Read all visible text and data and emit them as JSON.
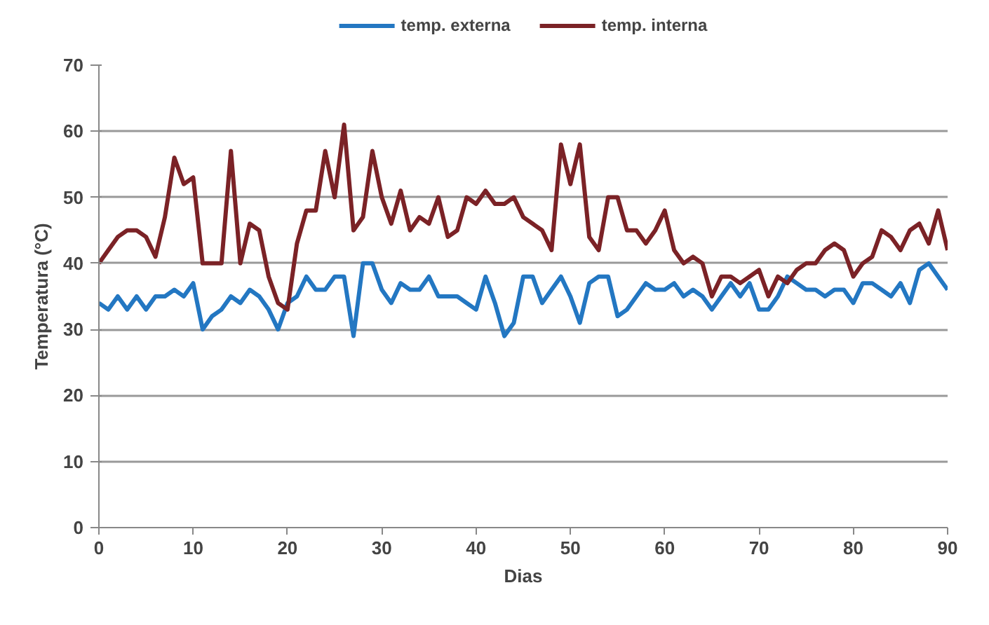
{
  "chart_data": {
    "type": "line",
    "xlabel": "Dias",
    "ylabel": "Temperatura (°C)",
    "x": [
      0,
      1,
      2,
      3,
      4,
      5,
      6,
      7,
      8,
      9,
      10,
      11,
      12,
      13,
      14,
      15,
      16,
      17,
      18,
      19,
      20,
      21,
      22,
      23,
      24,
      25,
      26,
      27,
      28,
      29,
      30,
      31,
      32,
      33,
      34,
      35,
      36,
      37,
      38,
      39,
      40,
      41,
      42,
      43,
      44,
      45,
      46,
      47,
      48,
      49,
      50,
      51,
      52,
      53,
      54,
      55,
      56,
      57,
      58,
      59,
      60,
      61,
      62,
      63,
      64,
      65,
      66,
      67,
      68,
      69,
      70,
      71,
      72,
      73,
      74,
      75,
      76,
      77,
      78,
      79,
      80,
      81,
      82,
      83,
      84,
      85,
      86,
      87,
      88,
      89,
      90
    ],
    "series": [
      {
        "name": "temp. externa",
        "color": "#2377c2",
        "values": [
          34,
          33,
          35,
          33,
          35,
          33,
          35,
          35,
          36,
          35,
          37,
          30,
          32,
          33,
          35,
          34,
          36,
          35,
          33,
          30,
          34,
          35,
          38,
          36,
          36,
          38,
          38,
          29,
          40,
          40,
          36,
          34,
          37,
          36,
          36,
          38,
          35,
          35,
          35,
          34,
          33,
          38,
          34,
          29,
          31,
          38,
          38,
          34,
          36,
          38,
          35,
          31,
          37,
          38,
          38,
          32,
          33,
          35,
          37,
          36,
          36,
          37,
          35,
          36,
          35,
          33,
          35,
          37,
          35,
          37,
          33,
          33,
          35,
          38,
          37,
          36,
          36,
          35,
          36,
          36,
          34,
          37,
          37,
          36,
          35,
          37,
          34,
          39,
          40,
          38,
          36
        ]
      },
      {
        "name": "temp. interna",
        "color": "#7b2226",
        "values": [
          40,
          42,
          44,
          45,
          45,
          44,
          41,
          47,
          56,
          52,
          53,
          40,
          40,
          40,
          57,
          40,
          46,
          45,
          38,
          34,
          33,
          43,
          48,
          48,
          57,
          50,
          61,
          45,
          47,
          57,
          50,
          46,
          51,
          45,
          47,
          46,
          50,
          44,
          45,
          50,
          49,
          51,
          49,
          49,
          50,
          47,
          46,
          45,
          42,
          58,
          52,
          58,
          44,
          42,
          50,
          50,
          45,
          45,
          43,
          45,
          48,
          42,
          40,
          41,
          40,
          35,
          38,
          38,
          37,
          38,
          39,
          35,
          38,
          37,
          39,
          40,
          40,
          42,
          43,
          42,
          38,
          40,
          41,
          45,
          44,
          42,
          45,
          46,
          43,
          48,
          42
        ]
      }
    ],
    "xlim": [
      0,
      90
    ],
    "xticks": [
      0,
      10,
      20,
      30,
      40,
      50,
      60,
      70,
      80,
      90
    ],
    "ylim": [
      0,
      70
    ],
    "yticks": [
      0,
      10,
      20,
      30,
      40,
      50,
      60,
      70
    ],
    "grid": "y",
    "legend": "top",
    "marker": "none",
    "line_style": "solid"
  }
}
